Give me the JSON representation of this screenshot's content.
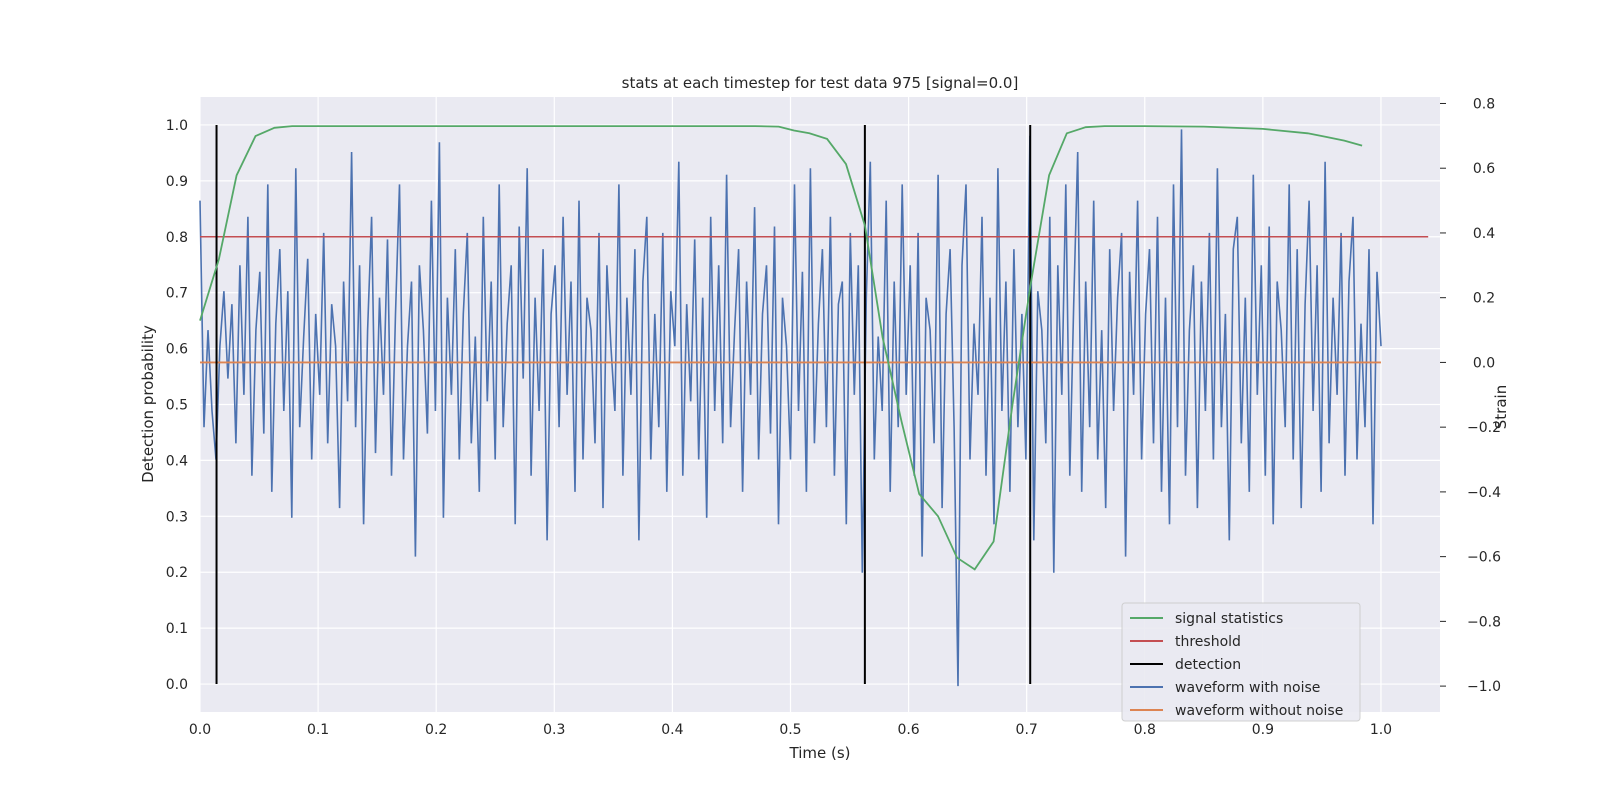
{
  "chart_data": {
    "type": "line",
    "title": "stats at each timestep for test data 975 [signal=0.0]",
    "xlabel": "Time (s)",
    "ylabel": "Detection probability",
    "y2label": "Strain",
    "xlim": [
      0.0,
      1.05
    ],
    "ylim": [
      -0.05,
      1.05
    ],
    "y2lim": [
      -1.08,
      0.82
    ],
    "x_ticks": [
      "0.0",
      "0.1",
      "0.2",
      "0.3",
      "0.4",
      "0.5",
      "0.6",
      "0.7",
      "0.8",
      "0.9",
      "1.0"
    ],
    "y_ticks": [
      "0.0",
      "0.1",
      "0.2",
      "0.3",
      "0.4",
      "0.5",
      "0.6",
      "0.7",
      "0.8",
      "0.9",
      "1.0"
    ],
    "y2_ticks": [
      "−1.0",
      "−0.8",
      "−0.6",
      "−0.4",
      "−0.2",
      "0.0",
      "0.2",
      "0.4",
      "0.6",
      "0.8"
    ],
    "grid": true,
    "legend_position": "lower-right",
    "colors": {
      "signal_statistics": "#55a868",
      "threshold": "#c44e52",
      "detection": "#000000",
      "waveform_with_noise": "#4c72b0",
      "waveform_without_noise": "#dd8452",
      "plot_background": "#eaeaf2",
      "grid": "#ffffff"
    },
    "series": [
      {
        "name": "signal statistics",
        "axis": "left",
        "x": [
          0.0,
          0.016,
          0.031,
          0.047,
          0.063,
          0.078,
          0.094,
          0.2,
          0.3,
          0.4,
          0.47,
          0.49,
          0.503,
          0.516,
          0.531,
          0.547,
          0.563,
          0.578,
          0.594,
          0.609,
          0.625,
          0.641,
          0.656,
          0.672,
          0.688,
          0.703,
          0.719,
          0.734,
          0.75,
          0.766,
          0.8,
          0.85,
          0.9,
          0.938,
          0.953,
          0.969,
          0.984
        ],
        "y": [
          0.65,
          0.76,
          0.91,
          0.98,
          0.995,
          0.998,
          0.998,
          0.998,
          0.998,
          0.998,
          0.998,
          0.997,
          0.99,
          0.985,
          0.975,
          0.93,
          0.82,
          0.62,
          0.47,
          0.34,
          0.3,
          0.226,
          0.205,
          0.255,
          0.5,
          0.71,
          0.91,
          0.985,
          0.996,
          0.998,
          0.998,
          0.997,
          0.993,
          0.985,
          0.979,
          0.972,
          0.963
        ]
      },
      {
        "name": "threshold",
        "axis": "left",
        "x": [
          0.0,
          1.04
        ],
        "y": [
          0.8,
          0.8
        ]
      },
      {
        "name": "detection",
        "axis": "left",
        "x": [
          0.014,
          0.563,
          0.703
        ],
        "y_range": [
          0.0,
          1.0
        ]
      },
      {
        "name": "waveform with noise",
        "axis": "right",
        "x_range": [
          0.0,
          1.0
        ],
        "y": [
          0.5,
          -0.2,
          0.1,
          -0.15,
          -0.3,
          0.05,
          0.22,
          -0.05,
          0.18,
          -0.25,
          0.3,
          -0.1,
          0.45,
          -0.35,
          0.1,
          0.28,
          -0.22,
          0.55,
          -0.4,
          0.12,
          0.35,
          -0.15,
          0.22,
          -0.48,
          0.6,
          -0.2,
          0.08,
          0.32,
          -0.3,
          0.15,
          -0.1,
          0.4,
          -0.25,
          0.18,
          0.05,
          -0.45,
          0.25,
          -0.12,
          0.65,
          -0.2,
          0.3,
          -0.5,
          0.1,
          0.45,
          -0.28,
          0.2,
          -0.1,
          0.38,
          -0.35,
          0.15,
          0.55,
          -0.3,
          0.05,
          0.25,
          -0.6,
          0.3,
          0.1,
          -0.22,
          0.5,
          -0.15,
          0.68,
          -0.48,
          0.2,
          -0.1,
          0.35,
          -0.3,
          0.15,
          0.4,
          -0.25,
          0.08,
          -0.4,
          0.45,
          -0.12,
          0.25,
          -0.3,
          0.55,
          -0.2,
          0.12,
          0.3,
          -0.5,
          0.42,
          -0.05,
          0.6,
          -0.35,
          0.2,
          -0.15,
          0.35,
          -0.55,
          0.15,
          0.3,
          -0.2,
          0.45,
          -0.1,
          0.25,
          -0.4,
          0.5,
          -0.3,
          0.2,
          0.1,
          -0.25,
          0.4,
          -0.45,
          0.3,
          0.05,
          -0.15,
          0.55,
          -0.35,
          0.2,
          -0.1,
          0.35,
          -0.55,
          0.25,
          0.45,
          -0.3,
          0.15,
          -0.2,
          0.4,
          -0.4,
          0.22,
          0.05,
          0.62,
          -0.35,
          0.18,
          -0.12,
          0.38,
          -0.3,
          0.2,
          -0.48,
          0.45,
          -0.15,
          0.3,
          -0.25,
          0.58,
          -0.2,
          0.1,
          0.35,
          -0.4,
          0.25,
          -0.1,
          0.48,
          -0.3,
          0.15,
          0.3,
          -0.22,
          0.42,
          -0.5,
          0.2,
          0.05,
          -0.3,
          0.55,
          -0.15,
          0.28,
          -0.4,
          0.6,
          -0.25,
          0.12,
          0.35,
          -0.2,
          0.45,
          -0.35,
          0.18,
          0.25,
          -0.5,
          0.4,
          -0.1,
          0.3,
          -0.65,
          0.2,
          0.62,
          -0.3,
          0.08,
          -0.15,
          0.5,
          -0.4,
          0.25,
          -0.2,
          0.55,
          -0.1,
          0.3,
          -0.35,
          0.4,
          -0.6,
          0.2,
          0.1,
          -0.25,
          0.58,
          -0.45,
          0.15,
          0.35,
          -0.2,
          -1.0,
          0.3,
          0.55,
          -0.3,
          0.12,
          -0.1,
          0.45,
          -0.35,
          0.2,
          -0.5,
          0.6,
          -0.15,
          0.25,
          -0.4,
          0.35,
          -0.2,
          0.15,
          -0.3,
          0.7,
          -0.55,
          0.22,
          0.1,
          -0.25,
          0.45,
          -0.65,
          0.3,
          -0.1,
          0.55,
          -0.35,
          0.18,
          0.65,
          -0.4,
          0.25,
          -0.2,
          0.5,
          -0.3,
          0.1,
          -0.45,
          0.35,
          -0.15,
          0.2,
          0.4,
          -0.6,
          0.28,
          -0.1,
          0.5,
          -0.3,
          0.15,
          0.35,
          -0.25,
          0.45,
          -0.4,
          0.2,
          -0.5,
          0.55,
          -0.2,
          0.72,
          -0.35,
          0.1,
          0.3,
          -0.45,
          0.25,
          -0.15,
          0.4,
          -0.3,
          0.6,
          -0.2,
          0.15,
          -0.55,
          0.35,
          0.45,
          -0.25,
          0.2,
          -0.4,
          0.58,
          -0.1,
          0.3,
          -0.35,
          0.42,
          -0.5,
          0.25,
          0.1,
          -0.2,
          0.55,
          -0.3,
          0.35,
          -0.45,
          0.18,
          0.5,
          -0.15,
          0.3,
          -0.4,
          0.62,
          -0.25,
          0.2,
          -0.1,
          0.4,
          -0.35,
          0.25,
          0.45,
          -0.3,
          0.12,
          -0.2,
          0.35,
          -0.5,
          0.28,
          0.05
        ]
      },
      {
        "name": "waveform without noise",
        "axis": "right",
        "x": [
          0.0,
          1.0
        ],
        "y": [
          0.0,
          0.0
        ]
      }
    ]
  }
}
